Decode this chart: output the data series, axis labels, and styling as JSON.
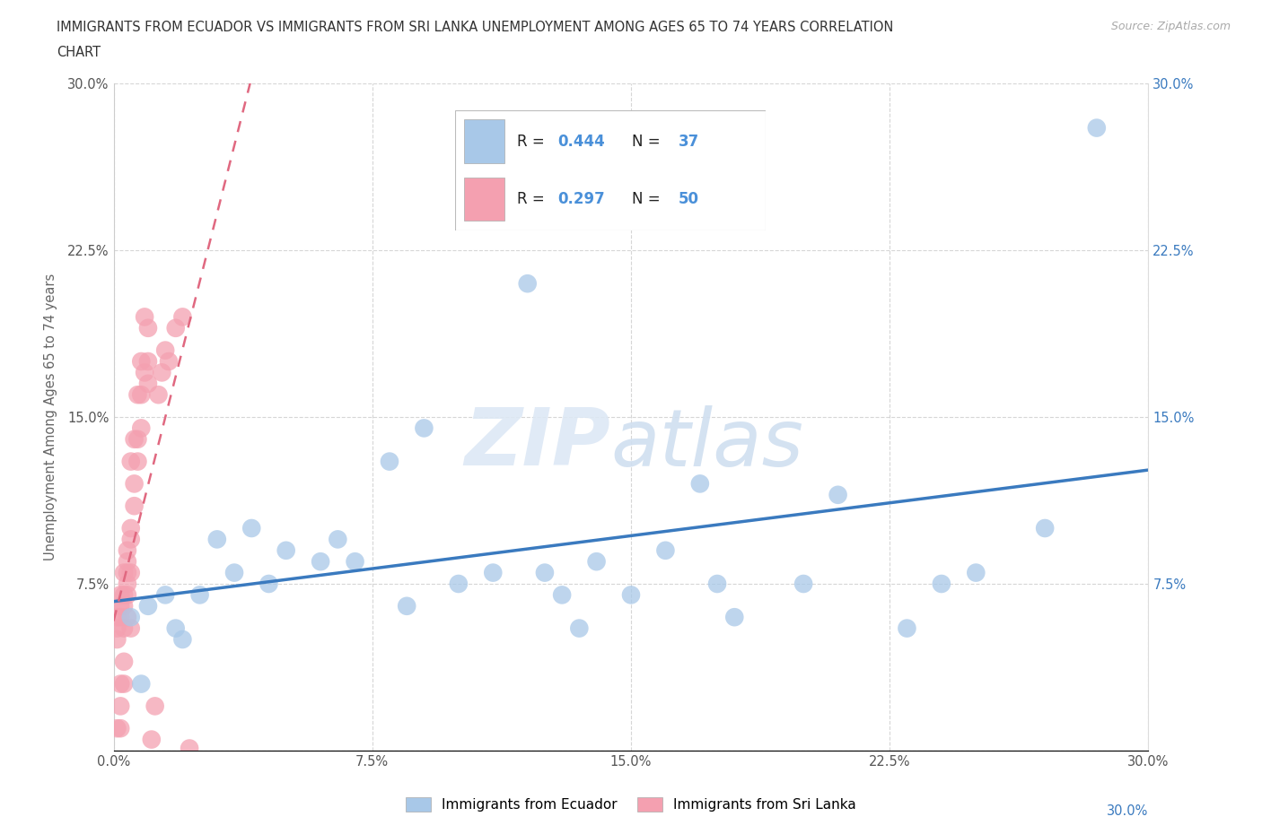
{
  "title_line1": "IMMIGRANTS FROM ECUADOR VS IMMIGRANTS FROM SRI LANKA UNEMPLOYMENT AMONG AGES 65 TO 74 YEARS CORRELATION",
  "title_line2": "CHART",
  "source": "Source: ZipAtlas.com",
  "ylabel": "Unemployment Among Ages 65 to 74 years",
  "xlim": [
    0,
    0.3
  ],
  "ylim": [
    0,
    0.3
  ],
  "xticks": [
    0.0,
    0.075,
    0.15,
    0.225,
    0.3
  ],
  "yticks": [
    0.0,
    0.075,
    0.15,
    0.225,
    0.3
  ],
  "xticklabels": [
    "0.0%",
    "7.5%",
    "15.0%",
    "22.5%",
    "30.0%"
  ],
  "yticklabels_left": [
    "",
    "7.5%",
    "15.0%",
    "22.5%",
    "30.0%"
  ],
  "yticklabels_right": [
    "",
    "7.5%",
    "15.0%",
    "22.5%",
    "30.0%"
  ],
  "ecuador_color": "#a8c8e8",
  "srilanka_color": "#f4a0b0",
  "trend_ecuador_color": "#3a7abf",
  "trend_srilanka_color": "#e06880",
  "ecuador_R": "0.444",
  "ecuador_N": "37",
  "srilanka_R": "0.297",
  "srilanka_N": "50",
  "legend_R_color": "#4a90d9",
  "legend_text_color": "#222222",
  "ecuador_x": [
    0.005,
    0.008,
    0.01,
    0.015,
    0.018,
    0.02,
    0.025,
    0.03,
    0.035,
    0.04,
    0.045,
    0.05,
    0.06,
    0.065,
    0.07,
    0.08,
    0.085,
    0.09,
    0.1,
    0.11,
    0.12,
    0.125,
    0.13,
    0.135,
    0.14,
    0.15,
    0.16,
    0.17,
    0.175,
    0.18,
    0.2,
    0.21,
    0.23,
    0.24,
    0.25,
    0.27,
    0.285
  ],
  "ecuador_y": [
    0.06,
    0.03,
    0.065,
    0.07,
    0.055,
    0.05,
    0.07,
    0.095,
    0.08,
    0.1,
    0.075,
    0.09,
    0.085,
    0.095,
    0.085,
    0.13,
    0.065,
    0.145,
    0.075,
    0.08,
    0.21,
    0.08,
    0.07,
    0.055,
    0.085,
    0.07,
    0.09,
    0.12,
    0.075,
    0.06,
    0.075,
    0.115,
    0.055,
    0.075,
    0.08,
    0.1,
    0.28
  ],
  "srilanka_x": [
    0.001,
    0.001,
    0.001,
    0.001,
    0.002,
    0.002,
    0.002,
    0.002,
    0.002,
    0.002,
    0.003,
    0.003,
    0.003,
    0.003,
    0.003,
    0.003,
    0.004,
    0.004,
    0.004,
    0.004,
    0.004,
    0.004,
    0.005,
    0.005,
    0.005,
    0.005,
    0.005,
    0.006,
    0.006,
    0.006,
    0.007,
    0.007,
    0.007,
    0.008,
    0.008,
    0.008,
    0.009,
    0.009,
    0.01,
    0.01,
    0.01,
    0.011,
    0.012,
    0.013,
    0.014,
    0.015,
    0.016,
    0.018,
    0.02,
    0.022
  ],
  "srilanka_y": [
    0.05,
    0.06,
    0.055,
    0.01,
    0.065,
    0.06,
    0.07,
    0.01,
    0.02,
    0.03,
    0.055,
    0.065,
    0.07,
    0.04,
    0.03,
    0.08,
    0.075,
    0.08,
    0.085,
    0.09,
    0.06,
    0.07,
    0.055,
    0.095,
    0.13,
    0.1,
    0.08,
    0.11,
    0.14,
    0.12,
    0.14,
    0.16,
    0.13,
    0.175,
    0.16,
    0.145,
    0.17,
    0.195,
    0.165,
    0.175,
    0.19,
    0.005,
    0.02,
    0.16,
    0.17,
    0.18,
    0.175,
    0.19,
    0.195,
    0.001
  ]
}
